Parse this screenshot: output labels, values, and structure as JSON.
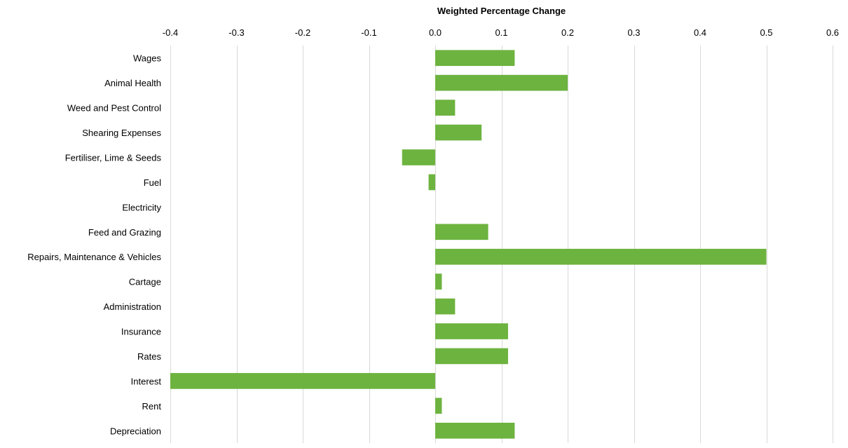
{
  "chart_data": {
    "type": "bar",
    "orientation": "horizontal",
    "title": "Weighted Percentage Change",
    "xlabel": "",
    "ylabel": "",
    "axis_position": "top",
    "grid": true,
    "legend": "none",
    "xlim": [
      -0.4,
      0.6
    ],
    "ticks": [
      "-0.4",
      "-0.3",
      "-0.2",
      "-0.1",
      "0.0",
      "0.1",
      "0.2",
      "0.3",
      "0.4",
      "0.5",
      "0.6"
    ],
    "tick_values": [
      -0.4,
      -0.3,
      -0.2,
      -0.1,
      0.0,
      0.1,
      0.2,
      0.3,
      0.4,
      0.5,
      0.6
    ],
    "categories": [
      "Wages",
      "Animal Health",
      "Weed and Pest Control",
      "Shearing Expenses",
      "Fertiliser, Lime & Seeds",
      "Fuel",
      "Electricity",
      "Feed and Grazing",
      "Repairs, Maintenance & Vehicles",
      "Cartage",
      "Administration",
      "Insurance",
      "Rates",
      "Interest",
      "Rent",
      "Depreciation"
    ],
    "values": [
      0.12,
      0.2,
      0.03,
      0.07,
      -0.05,
      -0.01,
      0.0,
      0.08,
      0.5,
      0.01,
      0.03,
      0.11,
      0.11,
      -0.4,
      0.01,
      0.12
    ],
    "colors": {
      "bar": "#6db33f",
      "grid": "#d9d9d9"
    }
  }
}
